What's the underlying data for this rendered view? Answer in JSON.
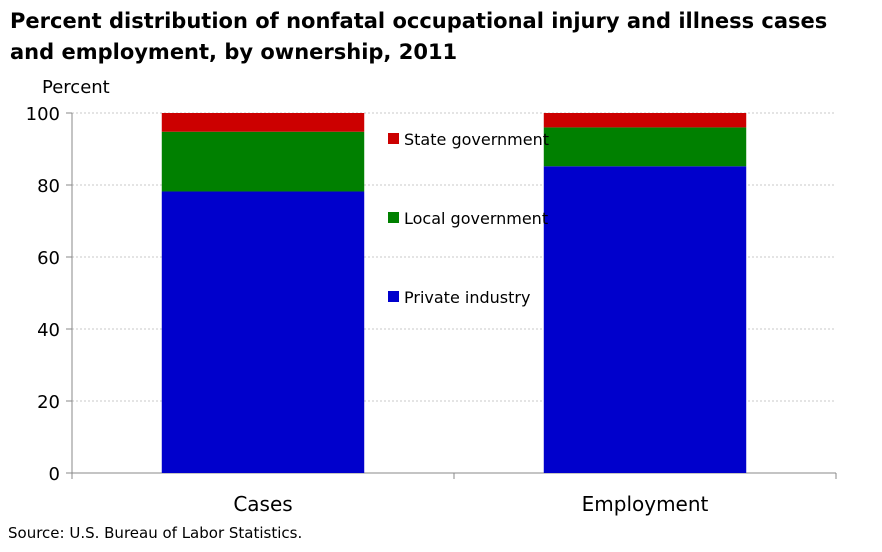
{
  "chart_data": {
    "type": "bar",
    "stacked": true,
    "title": "Percent distribution of nonfatal occupational injury and illness cases and employment, by ownership, 2011",
    "ylabel": "Percent",
    "xlabel": "",
    "ylim": [
      0,
      100
    ],
    "yticks": [
      0,
      20,
      40,
      60,
      80,
      100
    ],
    "grid": true,
    "legend_position": "center",
    "categories": [
      "Cases",
      "Employment"
    ],
    "series": [
      {
        "name": "Private industry",
        "values": [
          78.2,
          85.2
        ],
        "color": "#0000CC"
      },
      {
        "name": "Local government",
        "values": [
          16.6,
          10.8
        ],
        "color": "#008000"
      },
      {
        "name": "State government",
        "values": [
          5.2,
          4.0
        ],
        "color": "#CC0000"
      }
    ],
    "legend_order": [
      "State government",
      "Local government",
      "Private industry"
    ]
  },
  "source": "Source: U.S. Bureau of Labor Statistics."
}
